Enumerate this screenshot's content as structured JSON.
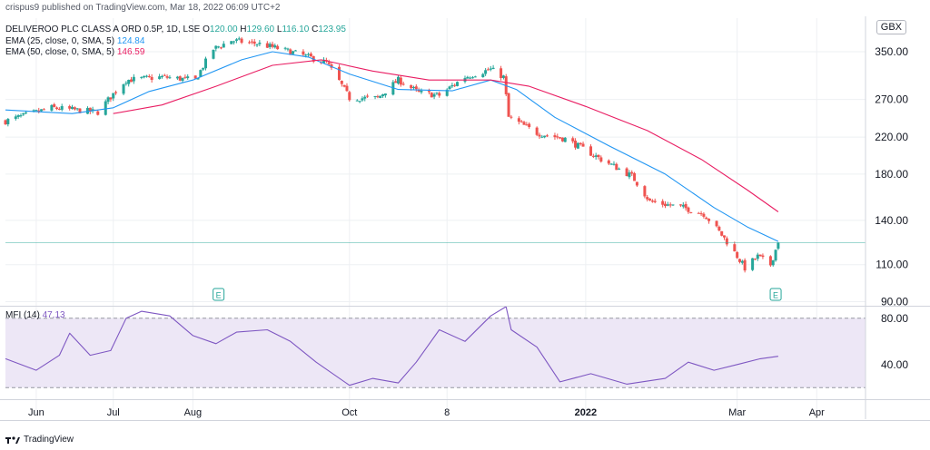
{
  "header": {
    "publisher": "crispus9 published on TradingView.com, Mar 18, 2022 06:09 UTC+2",
    "symbol_line": "DELIVEROO PLC CLASS A ORD 0.5P, 1D, LSE",
    "ohlc": {
      "o_label": "O",
      "o": "120.00",
      "h_label": "H",
      "h": "129.60",
      "l_label": "L",
      "l": "116.10",
      "c_label": "C",
      "c": "123.95"
    },
    "ema25": {
      "label": "EMA (25, close, 0, SMA, 5)",
      "value": "124.84"
    },
    "ema50": {
      "label": "EMA (50, close, 0, SMA, 5)",
      "value": "146.59"
    },
    "currency": "GBX",
    "mfi": {
      "label": "MFI (14)",
      "value": "47.13"
    }
  },
  "colors": {
    "up": "#26a69a",
    "down": "#ef5350",
    "ema25": "#2196f3",
    "ema50": "#e91e63",
    "mfi": "#7e57c2",
    "mfi_band": "#ede7f6",
    "last_line": "#26a69a",
    "grid": "#eef0f3"
  },
  "footer": {
    "brand": "TradingView",
    "logo": "tradingview-logo"
  },
  "chart_data": [
    {
      "type": "candlestick",
      "title": "DELIVEROO PLC CLASS A ORD 0.5P, 1D, LSE",
      "y_scale": "log",
      "ylim": [
        88,
        420
      ],
      "y_ticks": [
        "350.00",
        "270.00",
        "220.00",
        "180.00",
        "140.00",
        "110.00",
        "90.00"
      ],
      "y_tick_values": [
        350,
        270,
        220,
        180,
        140,
        110,
        90
      ],
      "x_ticks": [
        "Jun",
        "Jul",
        "Aug",
        "Oct",
        "8",
        "2022",
        "Mar",
        "Apr"
      ],
      "x_tick_dates": [
        "2021-06-01",
        "2021-07-01",
        "2021-08-01",
        "2021-10-01",
        "2021-11-08",
        "2022-01-01",
        "2022-03-01",
        "2022-04-01"
      ],
      "x_range": [
        "2021-05-20",
        "2022-04-20"
      ],
      "last_price": 123.95,
      "earnings_markers": [
        "2021-08-11",
        "2022-03-16"
      ],
      "series": [
        {
          "name": "Price",
          "close_anchors": [
            [
              "2021-05-20",
              240
            ],
            [
              "2021-06-07",
              258
            ],
            [
              "2021-06-25",
              252
            ],
            [
              "2021-07-06",
              300
            ],
            [
              "2021-07-20",
              305
            ],
            [
              "2021-08-02",
              300
            ],
            [
              "2021-08-09",
              355
            ],
            [
              "2021-08-16",
              372
            ],
            [
              "2021-08-27",
              365
            ],
            [
              "2021-09-08",
              350
            ],
            [
              "2021-09-22",
              330
            ],
            [
              "2021-10-01",
              272
            ],
            [
              "2021-10-12",
              272
            ],
            [
              "2021-10-20",
              300
            ],
            [
              "2021-10-28",
              280
            ],
            [
              "2021-11-05",
              276
            ],
            [
              "2021-11-15",
              305
            ],
            [
              "2021-11-25",
              318
            ],
            [
              "2021-11-30",
              305
            ],
            [
              "2021-12-02",
              245
            ],
            [
              "2021-12-13",
              225
            ],
            [
              "2021-12-24",
              218
            ],
            [
              "2022-01-07",
              195
            ],
            [
              "2022-01-19",
              178
            ],
            [
              "2022-01-26",
              155
            ],
            [
              "2022-02-08",
              150
            ],
            [
              "2022-02-16",
              145
            ],
            [
              "2022-02-24",
              127
            ],
            [
              "2022-03-04",
              108
            ],
            [
              "2022-03-09",
              115
            ],
            [
              "2022-03-14",
              110
            ],
            [
              "2022-03-17",
              123.95
            ]
          ]
        },
        {
          "name": "EMA (25, close, 0, SMA, 5)",
          "values": [
            [
              "2021-05-20",
              255
            ],
            [
              "2021-06-15",
              250
            ],
            [
              "2021-07-01",
              258
            ],
            [
              "2021-07-15",
              282
            ],
            [
              "2021-08-01",
              300
            ],
            [
              "2021-08-20",
              335
            ],
            [
              "2021-09-01",
              350
            ],
            [
              "2021-09-15",
              340
            ],
            [
              "2021-10-01",
              310
            ],
            [
              "2021-10-20",
              285
            ],
            [
              "2021-11-10",
              283
            ],
            [
              "2021-11-25",
              300
            ],
            [
              "2021-12-05",
              285
            ],
            [
              "2021-12-20",
              245
            ],
            [
              "2022-01-10",
              210
            ],
            [
              "2022-02-01",
              180
            ],
            [
              "2022-02-20",
              150
            ],
            [
              "2022-03-05",
              135
            ],
            [
              "2022-03-17",
              124.84
            ]
          ]
        },
        {
          "name": "EMA (50, close, 0, SMA, 5)",
          "values": [
            [
              "2021-07-01",
              250
            ],
            [
              "2021-07-20",
              262
            ],
            [
              "2021-08-10",
              290
            ],
            [
              "2021-09-01",
              325
            ],
            [
              "2021-09-20",
              335
            ],
            [
              "2021-10-10",
              315
            ],
            [
              "2021-11-01",
              300
            ],
            [
              "2021-11-25",
              300
            ],
            [
              "2021-12-10",
              290
            ],
            [
              "2022-01-01",
              260
            ],
            [
              "2022-01-25",
              228
            ],
            [
              "2022-02-15",
              195
            ],
            [
              "2022-03-05",
              165
            ],
            [
              "2022-03-17",
              146.59
            ]
          ]
        }
      ]
    },
    {
      "type": "line",
      "title": "MFI (14)",
      "ylim": [
        10,
        90
      ],
      "y_ticks": [
        "80.00",
        "40.00"
      ],
      "y_tick_values": [
        80,
        40
      ],
      "bands": [
        20,
        80
      ],
      "series": [
        {
          "name": "MFI (14)",
          "values": [
            [
              "2021-05-20",
              45
            ],
            [
              "2021-06-01",
              35
            ],
            [
              "2021-06-10",
              48
            ],
            [
              "2021-06-14",
              67
            ],
            [
              "2021-06-22",
              48
            ],
            [
              "2021-06-30",
              52
            ],
            [
              "2021-07-06",
              80
            ],
            [
              "2021-07-12",
              86
            ],
            [
              "2021-07-23",
              82
            ],
            [
              "2021-08-01",
              65
            ],
            [
              "2021-08-10",
              58
            ],
            [
              "2021-08-18",
              68
            ],
            [
              "2021-08-30",
              70
            ],
            [
              "2021-09-08",
              60
            ],
            [
              "2021-09-18",
              42
            ],
            [
              "2021-10-01",
              22
            ],
            [
              "2021-10-10",
              28
            ],
            [
              "2021-10-20",
              24
            ],
            [
              "2021-10-27",
              42
            ],
            [
              "2021-11-05",
              70
            ],
            [
              "2021-11-15",
              60
            ],
            [
              "2021-11-25",
              82
            ],
            [
              "2021-12-01",
              90
            ],
            [
              "2021-12-03",
              70
            ],
            [
              "2021-12-13",
              55
            ],
            [
              "2021-12-22",
              25
            ],
            [
              "2022-01-03",
              32
            ],
            [
              "2022-01-17",
              23
            ],
            [
              "2022-02-01",
              28
            ],
            [
              "2022-02-10",
              42
            ],
            [
              "2022-02-20",
              35
            ],
            [
              "2022-03-01",
              40
            ],
            [
              "2022-03-10",
              45
            ],
            [
              "2022-03-17",
              47.13
            ]
          ]
        }
      ]
    }
  ]
}
